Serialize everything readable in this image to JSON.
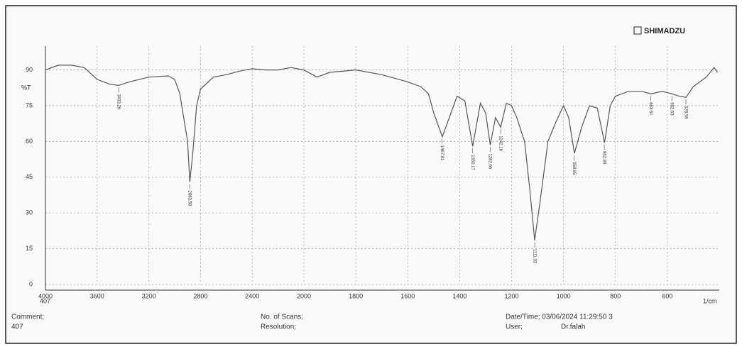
{
  "chart_data": {
    "type": "line",
    "brand": "SHIMADZU",
    "ylabel": "%T",
    "xunit": "1/cm",
    "start_note": "407",
    "x": [
      4000,
      3900,
      3800,
      3700,
      3600,
      3500,
      3433,
      3350,
      3200,
      3050,
      3000,
      2960,
      2930,
      2900,
      2883,
      2860,
      2830,
      2800,
      2700,
      2600,
      2500,
      2400,
      2300,
      2200,
      2100,
      2000,
      1950,
      1900,
      1800,
      1700,
      1600,
      1550,
      1520,
      1500,
      1467,
      1440,
      1410,
      1380,
      1350,
      1320,
      1300,
      1282,
      1262,
      1242,
      1220,
      1200,
      1180,
      1150,
      1130,
      1111,
      1090,
      1060,
      1030,
      1000,
      980,
      958,
      930,
      900,
      870,
      842,
      820,
      800,
      750,
      700,
      663,
      620,
      582,
      555,
      528,
      500,
      450,
      420,
      407
    ],
    "values": [
      90,
      92,
      92,
      91,
      86,
      84,
      83.5,
      85,
      87,
      87.5,
      86,
      80,
      70,
      60,
      43,
      55,
      75,
      82,
      87,
      88,
      89.5,
      90.5,
      90,
      90,
      91,
      90,
      87,
      89,
      90,
      88,
      85,
      83,
      80,
      72,
      62,
      70,
      79,
      77,
      58,
      76,
      72,
      58.5,
      70,
      66,
      76,
      75,
      70,
      60,
      40,
      18.5,
      35,
      60,
      68,
      75,
      70,
      55,
      66,
      75,
      74,
      59.5,
      75,
      79,
      81,
      81,
      80,
      81,
      80,
      79,
      78.5,
      83,
      87,
      91,
      89
    ],
    "color": "#555555",
    "peaks": {
      "x": [
        3433.29,
        2883.58,
        1467.81,
        1350.17,
        1282.66,
        1242.16,
        1111.03,
        958.85,
        842.89,
        663.51,
        582.53,
        528.58
      ],
      "y": [
        83.5,
        43,
        62,
        58,
        58.5,
        66,
        18.5,
        55,
        59.5,
        80,
        80,
        78.5
      ]
    },
    "xlim": [
      4000,
      400
    ],
    "x_break": 2000,
    "xticks": [
      4000,
      3600,
      3200,
      2800,
      2400,
      2000,
      1800,
      1600,
      1400,
      1200,
      1000,
      800,
      600
    ],
    "ylim": [
      0,
      100
    ],
    "yticks": [
      0,
      15,
      30,
      45,
      60,
      75,
      90
    ],
    "grid": true,
    "footer": {
      "comment": "Comment;",
      "comment_value": "407",
      "scans": "No. of Scans;",
      "resolution": "Resolution;",
      "datetime": "Date/Time; 03/06/2024 11:29:50 3",
      "user": "User;",
      "user_value": "Dr.falah"
    }
  }
}
